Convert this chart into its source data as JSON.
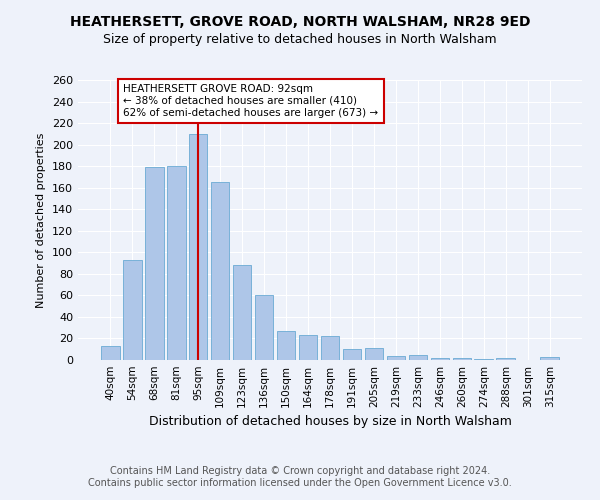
{
  "title": "HEATHERSETT, GROVE ROAD, NORTH WALSHAM, NR28 9ED",
  "subtitle": "Size of property relative to detached houses in North Walsham",
  "xlabel": "Distribution of detached houses by size in North Walsham",
  "ylabel": "Number of detached properties",
  "categories": [
    "40sqm",
    "54sqm",
    "68sqm",
    "81sqm",
    "95sqm",
    "109sqm",
    "123sqm",
    "136sqm",
    "150sqm",
    "164sqm",
    "178sqm",
    "191sqm",
    "205sqm",
    "219sqm",
    "233sqm",
    "246sqm",
    "260sqm",
    "274sqm",
    "288sqm",
    "301sqm",
    "315sqm"
  ],
  "values": [
    13,
    93,
    179,
    180,
    210,
    165,
    88,
    60,
    27,
    23,
    22,
    10,
    11,
    4,
    5,
    2,
    2,
    1,
    2,
    0,
    3
  ],
  "bar_color": "#aec6e8",
  "bar_edge_color": "#6aaad4",
  "marker_index": 4,
  "marker_color": "#cc0000",
  "annotation_text": "HEATHERSETT GROVE ROAD: 92sqm\n← 38% of detached houses are smaller (410)\n62% of semi-detached houses are larger (673) →",
  "annotation_box_color": "#ffffff",
  "annotation_box_edge": "#cc0000",
  "ylim": [
    0,
    260
  ],
  "yticks": [
    0,
    20,
    40,
    60,
    80,
    100,
    120,
    140,
    160,
    180,
    200,
    220,
    240,
    260
  ],
  "footer1": "Contains HM Land Registry data © Crown copyright and database right 2024.",
  "footer2": "Contains public sector information licensed under the Open Government Licence v3.0.",
  "bg_color": "#eef2fa",
  "title_fontsize": 10,
  "subtitle_fontsize": 9,
  "annotation_fontsize": 7.5,
  "footer_fontsize": 7,
  "ylabel_fontsize": 8,
  "xlabel_fontsize": 9
}
